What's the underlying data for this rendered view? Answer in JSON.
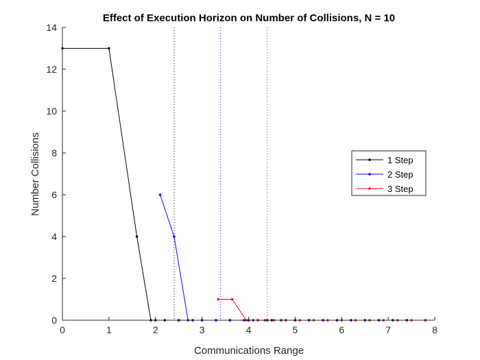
{
  "chart_data": {
    "type": "line",
    "title": "Effect of Execution Horizon on Number of Collisions, N = 10",
    "xlabel": "Communications Range",
    "ylabel": "Number Collisions",
    "xlim": [
      0,
      8
    ],
    "ylim": [
      0,
      14
    ],
    "xticks": [
      0,
      1,
      2,
      3,
      4,
      5,
      6,
      7,
      8
    ],
    "yticks": [
      0,
      2,
      4,
      6,
      8,
      10,
      12,
      14
    ],
    "grid": false,
    "legend_position": "right",
    "series": [
      {
        "name": "1 Step",
        "color": "#000000",
        "x": [
          0,
          1,
          1.6,
          1.9,
          2.0,
          2.2,
          2.5,
          2.8,
          3.0,
          3.3,
          3.6,
          4.0,
          4.2,
          4.5,
          4.8,
          5.0,
          5.3,
          5.6,
          5.9,
          6.2,
          6.5,
          6.8,
          7.1,
          7.4,
          7.8
        ],
        "y": [
          13,
          13,
          4,
          0,
          0,
          0,
          0,
          0,
          0,
          0,
          0,
          0,
          0,
          0,
          0,
          0,
          0,
          0,
          0,
          0,
          0,
          0,
          0,
          0,
          0
        ]
      },
      {
        "name": "2 Step",
        "color": "#0000ff",
        "x": [
          2.1,
          2.4,
          2.7,
          2.8,
          3.0,
          3.3,
          3.6,
          3.9,
          4.1,
          4.4,
          4.7,
          5.0,
          5.3,
          5.6,
          5.9,
          6.2,
          6.5,
          6.8,
          7.1,
          7.4,
          7.8
        ],
        "y": [
          6,
          4,
          0,
          0,
          0,
          0,
          0,
          0,
          0,
          0,
          0,
          0,
          0,
          0,
          0,
          0,
          0,
          0,
          0,
          0,
          0
        ]
      },
      {
        "name": "3 Step",
        "color": "#ff0000",
        "x": [
          3.35,
          3.65,
          3.95,
          4.2,
          4.35,
          4.55,
          4.8,
          5.1,
          5.4,
          5.7,
          6.0,
          6.3,
          6.6,
          6.9,
          7.2,
          7.5,
          7.8
        ],
        "y": [
          1,
          1,
          0,
          0,
          0,
          0,
          0,
          0,
          0,
          0,
          0,
          0,
          0,
          0,
          0,
          0,
          0
        ]
      }
    ],
    "vlines": [
      {
        "x": 2.4,
        "color": "#000000"
      },
      {
        "x": 3.4,
        "color": "#0000ff"
      },
      {
        "x": 4.4,
        "color": "#ff0000"
      }
    ]
  }
}
